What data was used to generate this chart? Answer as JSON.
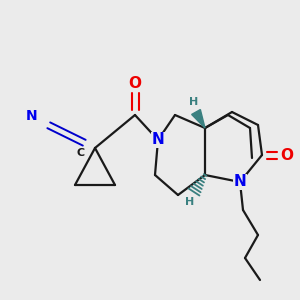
{
  "bg_color": "#ebebeb",
  "bond_color": "#1a1a1a",
  "N_color": "#0000ee",
  "O_color": "#ee0000",
  "stereo_color": "#3a8080",
  "CN_color": "#0000cc",
  "bond_width": 1.6,
  "font_size": 9,
  "figsize": [
    3.0,
    3.0
  ],
  "dpi": 100,
  "xlim": [
    0,
    300
  ],
  "ylim": [
    0,
    300
  ]
}
